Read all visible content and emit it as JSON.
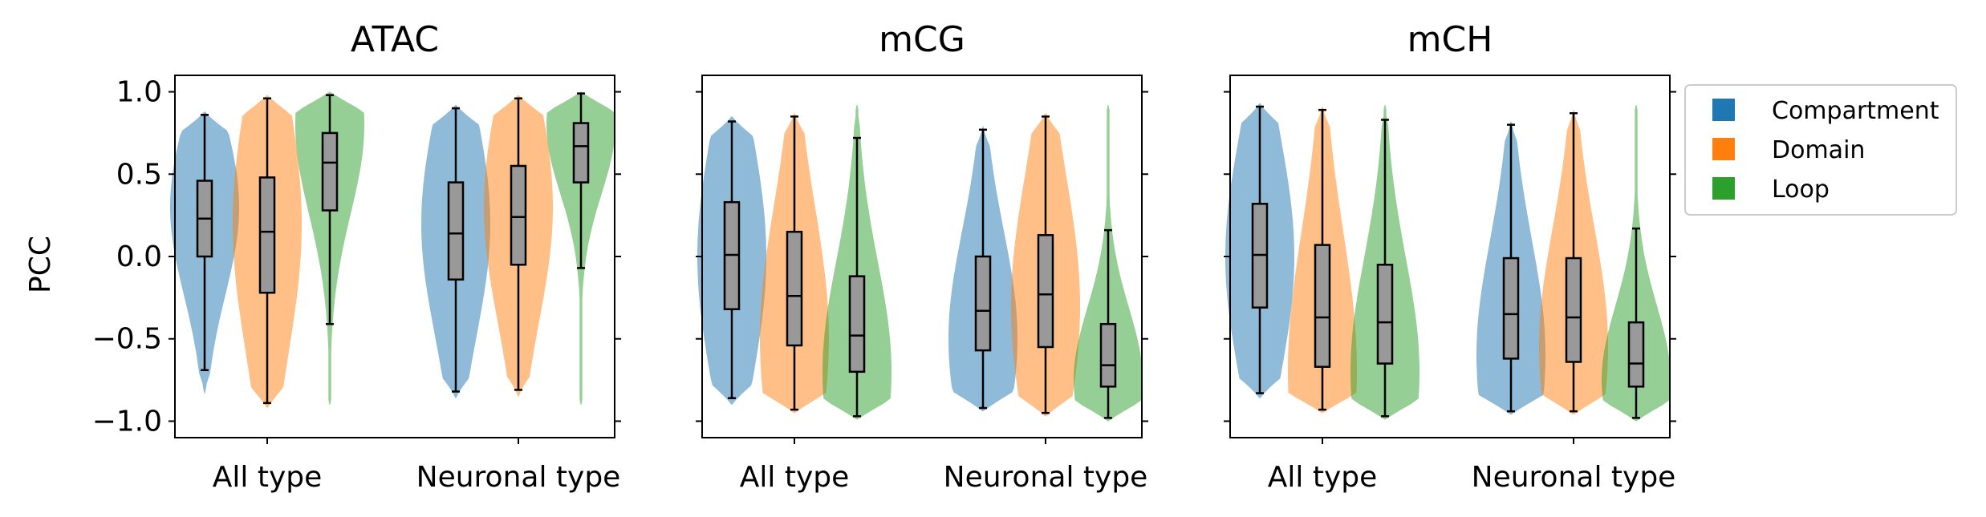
{
  "chart_data": {
    "type": "violin",
    "ylabel": "PCC",
    "ylim": [
      -1.1,
      1.1
    ],
    "yticks": [
      1.0,
      0.5,
      0.0,
      -0.5,
      -1.0
    ],
    "ytick_labels": [
      "1.0",
      "0.5",
      "0.0",
      "−0.5",
      "−1.0"
    ],
    "categories": [
      "All type",
      "Neuronal type"
    ],
    "series_colors": {
      "Compartment": "#1f77b4",
      "Domain": "#ff7f0e",
      "Loop": "#2ca02c"
    },
    "legend": {
      "position": "right",
      "entries": [
        "Compartment",
        "Domain",
        "Loop"
      ]
    },
    "panels": [
      {
        "title": "ATAC",
        "groups": [
          {
            "category": "All type",
            "violins": [
              {
                "series": "Compartment",
                "min": -0.69,
                "q1": 0.0,
                "median": 0.23,
                "q3": 0.46,
                "max": 0.86,
                "kde_min": -0.83,
                "kde_max": 0.88,
                "mode": 0.3
              },
              {
                "series": "Domain",
                "min": -0.89,
                "q1": -0.22,
                "median": 0.15,
                "q3": 0.48,
                "max": 0.96,
                "kde_min": -0.92,
                "kde_max": 0.98,
                "mode": 0.2
              },
              {
                "series": "Loop",
                "min": -0.41,
                "q1": 0.28,
                "median": 0.57,
                "q3": 0.75,
                "max": 0.98,
                "kde_min": -0.9,
                "kde_max": 1.0,
                "mode": 0.8
              }
            ]
          },
          {
            "category": "Neuronal type",
            "violins": [
              {
                "series": "Compartment",
                "min": -0.82,
                "q1": -0.14,
                "median": 0.14,
                "q3": 0.45,
                "max": 0.9,
                "kde_min": -0.86,
                "kde_max": 0.92,
                "mode": 0.2
              },
              {
                "series": "Domain",
                "min": -0.81,
                "q1": -0.05,
                "median": 0.24,
                "q3": 0.55,
                "max": 0.96,
                "kde_min": -0.85,
                "kde_max": 0.98,
                "mode": 0.3
              },
              {
                "series": "Loop",
                "min": -0.07,
                "q1": 0.45,
                "median": 0.67,
                "q3": 0.81,
                "max": 0.99,
                "kde_min": -0.9,
                "kde_max": 1.0,
                "mode": 0.8
              }
            ]
          }
        ]
      },
      {
        "title": "mCG",
        "groups": [
          {
            "category": "All type",
            "violins": [
              {
                "series": "Compartment",
                "min": -0.86,
                "q1": -0.32,
                "median": 0.01,
                "q3": 0.33,
                "max": 0.82,
                "kde_min": -0.9,
                "kde_max": 0.85,
                "mode": 0.0
              },
              {
                "series": "Domain",
                "min": -0.93,
                "q1": -0.54,
                "median": -0.24,
                "q3": 0.15,
                "max": 0.85,
                "kde_min": -0.95,
                "kde_max": 0.87,
                "mode": -0.5
              },
              {
                "series": "Loop",
                "min": -0.97,
                "q1": -0.7,
                "median": -0.48,
                "q3": -0.12,
                "max": 0.72,
                "kde_min": -0.99,
                "kde_max": 0.92,
                "mode": -0.7
              }
            ]
          },
          {
            "category": "Neuronal type",
            "violins": [
              {
                "series": "Compartment",
                "min": -0.92,
                "q1": -0.57,
                "median": -0.33,
                "q3": 0.0,
                "max": 0.77,
                "kde_min": -0.94,
                "kde_max": 0.79,
                "mode": -0.5
              },
              {
                "series": "Domain",
                "min": -0.95,
                "q1": -0.55,
                "median": -0.23,
                "q3": 0.13,
                "max": 0.85,
                "kde_min": -0.97,
                "kde_max": 0.87,
                "mode": -0.3
              },
              {
                "series": "Loop",
                "min": -0.98,
                "q1": -0.79,
                "median": -0.66,
                "q3": -0.41,
                "max": 0.16,
                "kde_min": -1.0,
                "kde_max": 0.92,
                "mode": -0.75
              }
            ]
          }
        ]
      },
      {
        "title": "mCH",
        "groups": [
          {
            "category": "All type",
            "violins": [
              {
                "series": "Compartment",
                "min": -0.83,
                "q1": -0.31,
                "median": 0.01,
                "q3": 0.32,
                "max": 0.91,
                "kde_min": -0.86,
                "kde_max": 0.93,
                "mode": 0.0
              },
              {
                "series": "Domain",
                "min": -0.93,
                "q1": -0.67,
                "median": -0.37,
                "q3": 0.07,
                "max": 0.89,
                "kde_min": -0.95,
                "kde_max": 0.91,
                "mode": -0.7
              },
              {
                "series": "Loop",
                "min": -0.97,
                "q1": -0.65,
                "median": -0.4,
                "q3": -0.05,
                "max": 0.83,
                "kde_min": -0.99,
                "kde_max": 0.92,
                "mode": -0.7
              }
            ]
          },
          {
            "category": "Neuronal type",
            "violins": [
              {
                "series": "Compartment",
                "min": -0.94,
                "q1": -0.62,
                "median": -0.35,
                "q3": -0.01,
                "max": 0.8,
                "kde_min": -0.96,
                "kde_max": 0.82,
                "mode": -0.6
              },
              {
                "series": "Domain",
                "min": -0.94,
                "q1": -0.64,
                "median": -0.37,
                "q3": -0.01,
                "max": 0.87,
                "kde_min": -0.96,
                "kde_max": 0.89,
                "mode": -0.55
              },
              {
                "series": "Loop",
                "min": -0.98,
                "q1": -0.79,
                "median": -0.65,
                "q3": -0.4,
                "max": 0.17,
                "kde_min": -1.0,
                "kde_max": 0.92,
                "mode": -0.75
              }
            ]
          }
        ]
      }
    ]
  }
}
